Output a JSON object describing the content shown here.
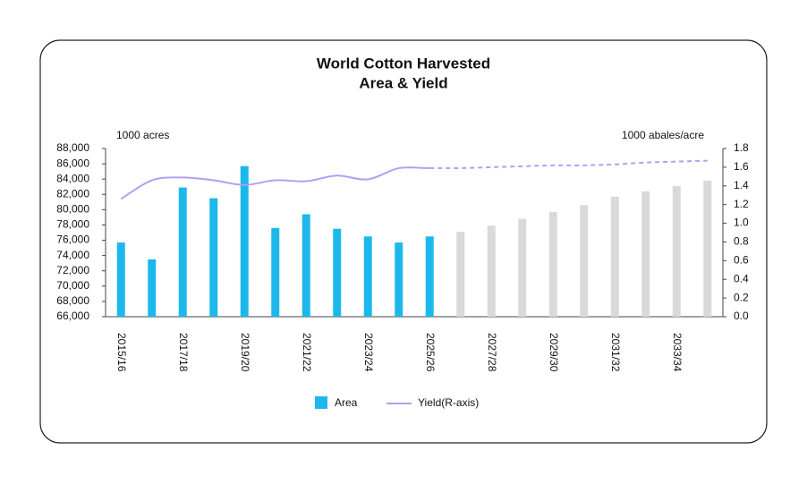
{
  "chart_data": {
    "type": "bar-line",
    "title": [
      "World Cotton Harvested",
      "Area & Yield"
    ],
    "y_label": "1000 acres",
    "y2_label": "1000 abales/acre",
    "categories": [
      "2015/16",
      null,
      "2017/18",
      null,
      "2019/20",
      null,
      "2021/22",
      null,
      "2023/24",
      null,
      "2025/26",
      null,
      "2027/28",
      null,
      "2029/30",
      null,
      "2031/32",
      null,
      "2033/34",
      null
    ],
    "series": [
      {
        "name": "Area",
        "type": "bar",
        "color": "#1cb8ec",
        "colors": [
          "#1cb8ec",
          "#1cb8ec",
          "#1cb8ec",
          "#1cb8ec",
          "#1cb8ec",
          "#1cb8ec",
          "#1cb8ec",
          "#1cb8ec",
          "#1cb8ec",
          "#1cb8ec",
          "#1cb8ec",
          "#d9d9d9",
          "#d9d9d9",
          "#d9d9d9",
          "#d9d9d9",
          "#d9d9d9",
          "#d9d9d9",
          "#d9d9d9",
          "#d9d9d9",
          "#d9d9d9"
        ],
        "values": [
          75700,
          73500,
          82900,
          81500,
          85700,
          77600,
          79400,
          77500,
          76500,
          75700,
          76500,
          77100,
          77900,
          78800,
          79700,
          80600,
          81700,
          82400,
          83100,
          83800
        ]
      },
      {
        "name": "Yield(R-axis)",
        "type": "line",
        "axis": "y2",
        "color": "#b59ef0",
        "dashed": [
          false,
          false,
          false,
          false,
          false,
          false,
          false,
          false,
          false,
          false,
          false,
          true,
          true,
          true,
          true,
          true,
          true,
          true,
          true,
          true
        ],
        "values": [
          1.26,
          1.46,
          1.49,
          1.46,
          1.41,
          1.46,
          1.45,
          1.51,
          1.47,
          1.59,
          1.59,
          1.59,
          1.6,
          1.61,
          1.62,
          1.62,
          1.63,
          1.65,
          1.66,
          1.67
        ]
      }
    ],
    "ylim": [
      66000,
      88000
    ],
    "yticks": [
      {
        "value": 66000,
        "label": "66,000"
      },
      {
        "value": 68000,
        "label": "68,000"
      },
      {
        "value": 70000,
        "label": "70,000"
      },
      {
        "value": 72000,
        "label": "72,000"
      },
      {
        "value": 74000,
        "label": "74,000"
      },
      {
        "value": 76000,
        "label": "76,000"
      },
      {
        "value": 78000,
        "label": "78,000"
      },
      {
        "value": 80000,
        "label": "80,000"
      },
      {
        "value": 82000,
        "label": "82,000"
      },
      {
        "value": 84000,
        "label": "84,000"
      },
      {
        "value": 86000,
        "label": "86,000"
      },
      {
        "value": 88000,
        "label": "88,000"
      }
    ],
    "y2lim": [
      0,
      1.8
    ],
    "y2ticks": [
      {
        "value": 0,
        "label": "0.0"
      },
      0.2,
      0.4,
      0.6,
      0.8,
      {
        "value": 1,
        "label": "1.0"
      },
      1.2,
      1.4,
      1.6,
      1.8
    ],
    "legend": "bottom"
  }
}
